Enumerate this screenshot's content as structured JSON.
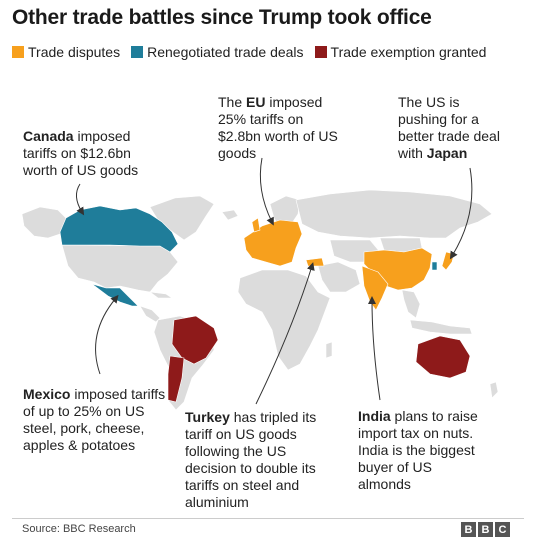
{
  "title": "Other trade battles since Trump took office",
  "legend": [
    {
      "label": "Trade disputes",
      "color": "#f7a01d"
    },
    {
      "label": "Renegotiated trade deals",
      "color": "#1f7d9a"
    },
    {
      "label": "Trade exemption granted",
      "color": "#8e1a1a"
    }
  ],
  "colors": {
    "land": "#dcdcdc",
    "leader": "#333333"
  },
  "annotations": {
    "canada": {
      "bold": "Canada",
      "text": " imposed tariffs on $12.6bn worth of US goods"
    },
    "eu": {
      "pre": "The ",
      "bold": "EU",
      "text": " imposed 25% tariffs on $2.8bn worth of US goods"
    },
    "japan": {
      "text": "The US is pushing for a better trade deal with ",
      "bold": "Japan"
    },
    "mexico": {
      "bold": "Mexico",
      "text": " imposed tariffs of up to 25% on US steel, pork, cheese, apples & potatoes"
    },
    "turkey": {
      "bold": "Turkey",
      "text": " has tripled its tariff on US goods following the US decision to double its tariffs on steel and aluminium"
    },
    "india": {
      "bold": "India",
      "text": " plans to raise import tax on nuts. India is the biggest buyer of US almonds"
    }
  },
  "source": "Source: BBC Research",
  "logo": [
    "B",
    "B",
    "C"
  ]
}
